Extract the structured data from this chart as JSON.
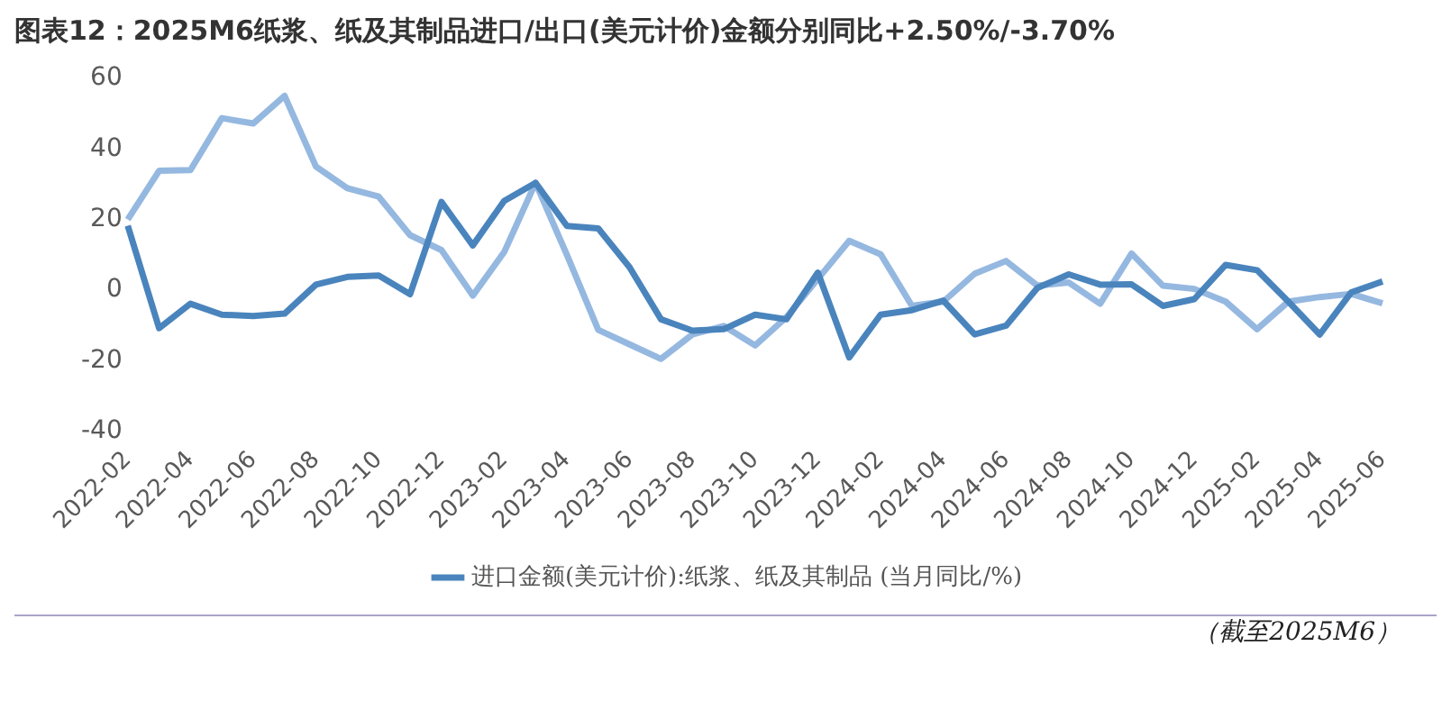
{
  "chart_data": {
    "type": "line",
    "title": "图表12：2025M6纸浆、纸及其制品进口/出口(美元计价)金额分别同比+2.50%/-3.70%",
    "categories": [
      "2022-02",
      null,
      "2022-04",
      null,
      "2022-06",
      null,
      "2022-08",
      null,
      "2022-10",
      null,
      "2022-12",
      null,
      "2023-02",
      null,
      "2023-04",
      null,
      "2023-06",
      null,
      "2023-08",
      null,
      "2023-10",
      null,
      "2023-12",
      null,
      "2024-02",
      null,
      "2024-04",
      null,
      "2024-06",
      null,
      "2024-08",
      null,
      "2024-10",
      null,
      "2024-12",
      null,
      "2025-02",
      null,
      "2025-04",
      null,
      "2025-06"
    ],
    "series": [
      {
        "name": "进口金额(美元计价):纸浆、纸及其制品 (当月同比/%)",
        "color": "#4a84bd",
        "values": [
          18.3,
          -10.7,
          -3.8,
          -6.9,
          -7.3,
          -6.6,
          1.6,
          3.8,
          4.2,
          -1.1,
          25,
          12.7,
          25.3,
          30.4,
          18.2,
          17.5,
          6.5,
          -8.2,
          -11.4,
          -11,
          -6.9,
          -8.2,
          5,
          -19,
          -6.9,
          -5.6,
          -2.9,
          -12.5,
          -10,
          0.7,
          4.5,
          1.6,
          1.7,
          -4.4,
          -2.5,
          7.2,
          5.7,
          -3.2,
          -12.5,
          -0.6,
          2.5
        ]
      },
      {
        "color": "#95b8e0",
        "values": [
          20,
          33.8,
          34,
          48.7,
          47.2,
          55,
          35,
          28.9,
          26.5,
          15.6,
          11.4,
          -1.5,
          10.8,
          30.4,
          10,
          -11.2,
          -15.3,
          -19.4,
          -12.5,
          -10.1,
          -15.6,
          -7.6,
          3.2,
          14,
          10.2,
          -4.4,
          -3.2,
          4.7,
          8.3,
          1.3,
          2.2,
          -3.8,
          10.4,
          1.3,
          0.4,
          -3.2,
          -11,
          -3.2,
          -1.9,
          -1,
          -3.7
        ]
      }
    ],
    "ylim": [
      -40,
      60
    ],
    "yticks": [
      -40,
      -20,
      0,
      20,
      40,
      60
    ],
    "grid": false,
    "legend": "bottom",
    "marker": "none",
    "line_style": "solid",
    "annotations": [
      "（截至2025M6）"
    ]
  }
}
